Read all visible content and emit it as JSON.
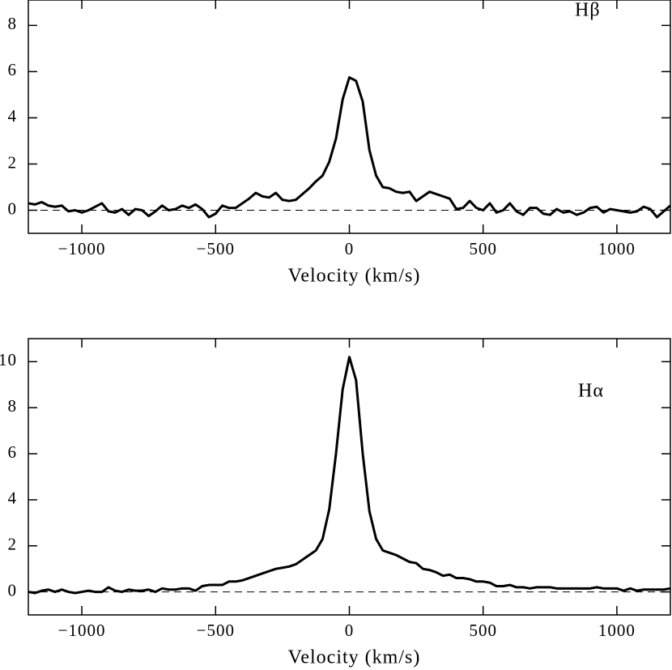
{
  "chart_data": [
    {
      "type": "line",
      "annotation": "Hβ",
      "xlabel": "Velocity (km/s)",
      "color": "#000000",
      "xlim": [
        -1200,
        1200
      ],
      "ylim": [
        -1,
        9.1
      ],
      "xticks": [
        {
          "value": -1000,
          "label": "−1000"
        },
        {
          "value": -500,
          "label": "−500"
        },
        0,
        500,
        1000
      ],
      "yticks": [
        0,
        2,
        4,
        6,
        8
      ],
      "hline": 0,
      "x": [
        -1200,
        -1175,
        -1150,
        -1125,
        -1100,
        -1075,
        -1050,
        -1025,
        -1000,
        -975,
        -950,
        -925,
        -900,
        -875,
        -850,
        -825,
        -800,
        -775,
        -750,
        -725,
        -700,
        -675,
        -650,
        -625,
        -600,
        -575,
        -550,
        -525,
        -500,
        -475,
        -450,
        -425,
        -400,
        -375,
        -350,
        -325,
        -300,
        -275,
        -250,
        -225,
        -200,
        -175,
        -150,
        -125,
        -100,
        -75,
        -50,
        -25,
        0,
        25,
        50,
        75,
        100,
        125,
        150,
        175,
        200,
        225,
        250,
        275,
        300,
        325,
        350,
        375,
        400,
        425,
        450,
        475,
        500,
        525,
        550,
        575,
        600,
        625,
        650,
        675,
        700,
        725,
        750,
        775,
        800,
        825,
        850,
        875,
        900,
        925,
        950,
        975,
        1000,
        1025,
        1050,
        1075,
        1100,
        1125,
        1150,
        1175,
        1200
      ],
      "values": [
        0.3,
        0.25,
        0.35,
        0.2,
        0.15,
        0.2,
        -0.05,
        0.0,
        -0.1,
        0.0,
        0.15,
        0.3,
        -0.05,
        -0.1,
        0.05,
        -0.2,
        0.05,
        0.0,
        -0.25,
        -0.05,
        0.2,
        0.0,
        0.05,
        0.2,
        0.1,
        0.25,
        0.05,
        -0.3,
        -0.15,
        0.2,
        0.1,
        0.1,
        0.3,
        0.5,
        0.75,
        0.6,
        0.55,
        0.75,
        0.45,
        0.4,
        0.45,
        0.7,
        0.95,
        1.25,
        1.5,
        2.1,
        3.1,
        4.8,
        5.75,
        5.6,
        4.7,
        2.6,
        1.5,
        1.0,
        0.95,
        0.8,
        0.75,
        0.8,
        0.4,
        0.6,
        0.8,
        0.7,
        0.6,
        0.5,
        0.05,
        0.1,
        0.4,
        0.1,
        0.0,
        0.3,
        -0.1,
        0.0,
        0.3,
        -0.05,
        -0.2,
        0.1,
        0.1,
        -0.15,
        -0.2,
        0.05,
        -0.1,
        -0.05,
        -0.2,
        -0.1,
        0.1,
        0.15,
        -0.1,
        0.05,
        0.0,
        -0.05,
        -0.1,
        -0.05,
        0.15,
        0.05,
        -0.3,
        -0.05,
        0.2
      ]
    },
    {
      "type": "line",
      "annotation": "Hα",
      "xlabel": "Velocity (km/s)",
      "color": "#000000",
      "xlim": [
        -1200,
        1200
      ],
      "ylim": [
        -1,
        11
      ],
      "xticks": [
        {
          "value": -1000,
          "label": "−1000"
        },
        {
          "value": -500,
          "label": "−500"
        },
        0,
        500,
        1000
      ],
      "yticks": [
        0,
        2,
        4,
        6,
        8,
        10
      ],
      "hline": 0,
      "x": [
        -1200,
        -1175,
        -1150,
        -1125,
        -1100,
        -1075,
        -1050,
        -1025,
        -1000,
        -975,
        -950,
        -925,
        -900,
        -875,
        -850,
        -825,
        -800,
        -775,
        -750,
        -725,
        -700,
        -675,
        -650,
        -625,
        -600,
        -575,
        -550,
        -525,
        -500,
        -475,
        -450,
        -425,
        -400,
        -375,
        -350,
        -325,
        -300,
        -275,
        -250,
        -225,
        -200,
        -175,
        -150,
        -125,
        -100,
        -75,
        -50,
        -25,
        0,
        25,
        50,
        75,
        100,
        125,
        150,
        175,
        200,
        225,
        250,
        275,
        300,
        325,
        350,
        375,
        400,
        425,
        450,
        475,
        500,
        525,
        550,
        575,
        600,
        625,
        650,
        675,
        700,
        725,
        750,
        775,
        800,
        825,
        850,
        875,
        900,
        925,
        950,
        975,
        1000,
        1025,
        1050,
        1075,
        1100,
        1125,
        1150,
        1175,
        1200
      ],
      "values": [
        0.0,
        -0.05,
        0.05,
        0.1,
        0.0,
        0.1,
        0.0,
        -0.05,
        0.0,
        0.05,
        0.0,
        0.0,
        0.2,
        0.05,
        0.0,
        0.1,
        0.05,
        0.05,
        0.1,
        0.0,
        0.15,
        0.1,
        0.1,
        0.15,
        0.15,
        0.05,
        0.25,
        0.3,
        0.3,
        0.3,
        0.45,
        0.45,
        0.5,
        0.6,
        0.7,
        0.8,
        0.9,
        1.0,
        1.05,
        1.1,
        1.2,
        1.4,
        1.6,
        1.8,
        2.3,
        3.6,
        6.0,
        8.8,
        10.2,
        9.2,
        6.0,
        3.5,
        2.3,
        1.8,
        1.7,
        1.6,
        1.45,
        1.3,
        1.25,
        1.0,
        0.95,
        0.85,
        0.7,
        0.75,
        0.6,
        0.6,
        0.55,
        0.45,
        0.45,
        0.4,
        0.25,
        0.25,
        0.3,
        0.2,
        0.2,
        0.15,
        0.2,
        0.2,
        0.2,
        0.15,
        0.15,
        0.15,
        0.15,
        0.15,
        0.15,
        0.2,
        0.15,
        0.15,
        0.15,
        0.05,
        0.15,
        0.05,
        0.1,
        0.1,
        0.1,
        0.1,
        0.15
      ]
    }
  ]
}
